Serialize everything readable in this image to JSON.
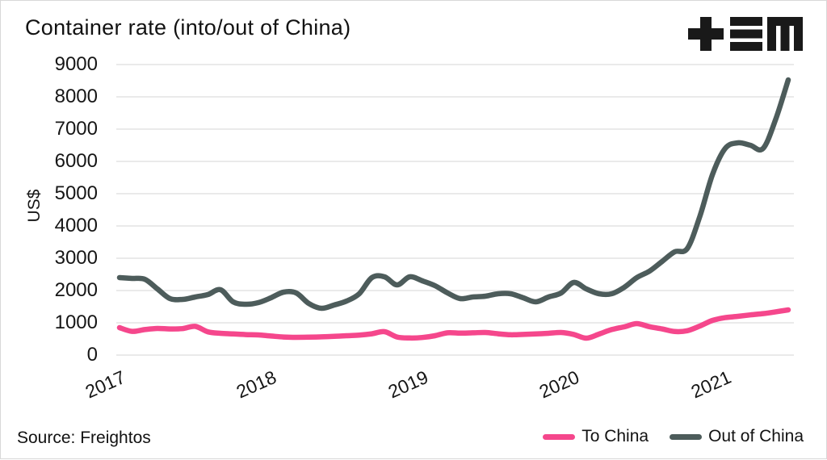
{
  "header": {
    "title": "Container rate (into/out of China)"
  },
  "icons": {
    "logo": "plus-equals-m-logo"
  },
  "footer": {
    "source": "Source: Freightos"
  },
  "colors": {
    "to_china": "#F5478C",
    "out_of_china": "#4D5C5B",
    "gridline": "#e4e4e4",
    "text": "#161616",
    "border": "#d8d8d8"
  },
  "chart_data": {
    "type": "line",
    "title": "Container rate (into/out of China)",
    "xlabel": "",
    "ylabel": "US$",
    "ylim": [
      0,
      9000
    ],
    "y_ticks": [
      0,
      1000,
      2000,
      3000,
      4000,
      5000,
      6000,
      7000,
      8000,
      9000
    ],
    "x_ticks": [
      "2017",
      "2018",
      "2019",
      "2020",
      "2021"
    ],
    "grid": "horizontal",
    "legend_position": "bottom-right",
    "x_unit": "month",
    "x_start": "2017-01",
    "x_end": "2021-06",
    "series": [
      {
        "name": "To China",
        "color": "#F5478C",
        "values": [
          850,
          735,
          790,
          825,
          810,
          820,
          890,
          720,
          675,
          655,
          635,
          625,
          590,
          560,
          550,
          555,
          565,
          580,
          600,
          620,
          660,
          725,
          560,
          530,
          545,
          600,
          690,
          680,
          690,
          700,
          660,
          630,
          640,
          655,
          675,
          700,
          640,
          525,
          650,
          790,
          875,
          975,
          880,
          810,
          730,
          755,
          900,
          1075,
          1160,
          1200,
          1245,
          1285,
          1340,
          1400
        ]
      },
      {
        "name": "Out of China",
        "color": "#4D5C5B",
        "values": [
          2400,
          2375,
          2350,
          2050,
          1750,
          1725,
          1800,
          1875,
          2025,
          1650,
          1575,
          1625,
          1775,
          1950,
          1925,
          1600,
          1450,
          1550,
          1675,
          1900,
          2400,
          2425,
          2175,
          2425,
          2300,
          2150,
          1925,
          1750,
          1800,
          1825,
          1900,
          1900,
          1775,
          1650,
          1800,
          1925,
          2250,
          2050,
          1900,
          1900,
          2100,
          2400,
          2600,
          2900,
          3200,
          3300,
          4300,
          5600,
          6400,
          6575,
          6500,
          6400,
          7300,
          8525
        ]
      }
    ]
  }
}
